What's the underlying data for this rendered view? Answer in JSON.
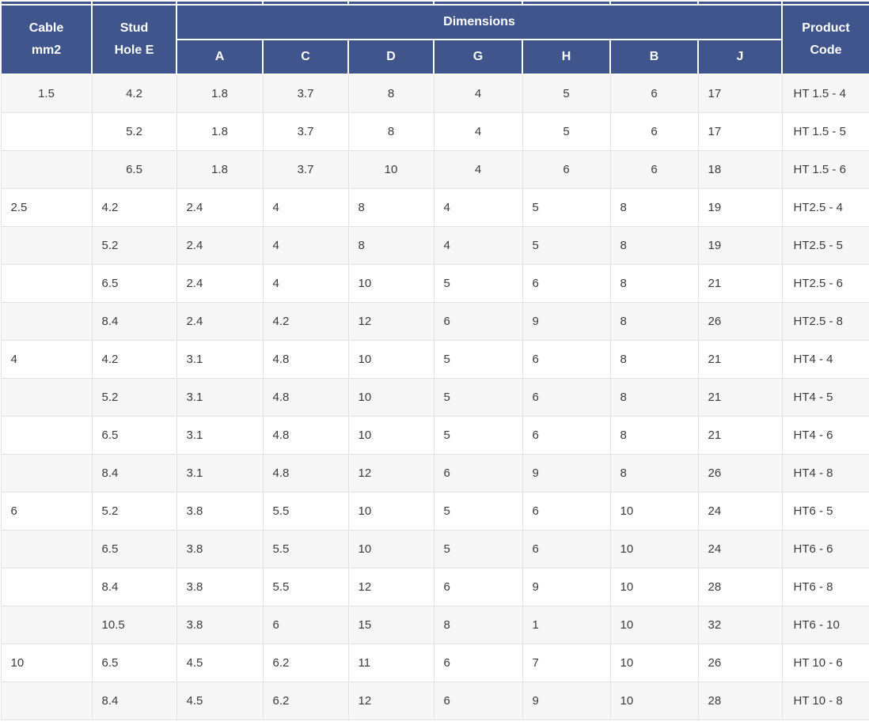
{
  "colors": {
    "header_bg": "#3F558C",
    "header_text": "#FFFFFF",
    "stripe_row": "#F7F7F7",
    "plain_row": "#FFFFFF",
    "cell_border": "#E2E2E2",
    "body_text": "#3B3B3B"
  },
  "header": {
    "cable": "Cable\nmm2",
    "stud_hole": "Stud\nHole E",
    "dimensions": "Dimensions",
    "product_code": "Product\nCode",
    "dimension_columns": [
      "A",
      "C",
      "D",
      "G",
      "H",
      "B",
      "J"
    ]
  },
  "rows": [
    {
      "cable": "1.5",
      "stud": "4.2",
      "dims": [
        "1.8",
        "3.7",
        "8",
        "4",
        "5",
        "6",
        "17"
      ],
      "code": "HT 1.5 - 4",
      "centered": true
    },
    {
      "cable": "",
      "stud": "5.2",
      "dims": [
        "1.8",
        "3.7",
        "8",
        "4",
        "5",
        "6",
        "17"
      ],
      "code": "HT 1.5 - 5",
      "centered": true
    },
    {
      "cable": "",
      "stud": "6.5",
      "dims": [
        "1.8",
        "3.7",
        "10",
        "4",
        "6",
        "6",
        "18"
      ],
      "code": "HT 1.5 - 6",
      "centered": true
    },
    {
      "cable": "2.5",
      "stud": "4.2",
      "dims": [
        "2.4",
        "4",
        "8",
        "4",
        "5",
        "8",
        "19"
      ],
      "code": "HT2.5 - 4",
      "centered": false
    },
    {
      "cable": "",
      "stud": "5.2",
      "dims": [
        "2.4",
        "4",
        "8",
        "4",
        "5",
        "8",
        "19"
      ],
      "code": "HT2.5 - 5",
      "centered": false
    },
    {
      "cable": "",
      "stud": "6.5",
      "dims": [
        "2.4",
        "4",
        "10",
        "5",
        "6",
        "8",
        "21"
      ],
      "code": "HT2.5 - 6",
      "centered": false
    },
    {
      "cable": "",
      "stud": "8.4",
      "dims": [
        "2.4",
        "4.2",
        "12",
        "6",
        "9",
        "8",
        "26"
      ],
      "code": "HT2.5 - 8",
      "centered": false
    },
    {
      "cable": "4",
      "stud": "4.2",
      "dims": [
        "3.1",
        "4.8",
        "10",
        "5",
        "6",
        "8",
        "21"
      ],
      "code": "HT4 - 4",
      "centered": false
    },
    {
      "cable": "",
      "stud": "5.2",
      "dims": [
        "3.1",
        "4.8",
        "10",
        "5",
        "6",
        "8",
        "21"
      ],
      "code": "HT4 - 5",
      "centered": false
    },
    {
      "cable": "",
      "stud": "6.5",
      "dims": [
        "3.1",
        "4.8",
        "10",
        "5",
        "6",
        "8",
        "21"
      ],
      "code": "HT4 - 6",
      "centered": false
    },
    {
      "cable": "",
      "stud": "8.4",
      "dims": [
        "3.1",
        "4.8",
        "12",
        "6",
        "9",
        "8",
        "26"
      ],
      "code": "HT4 - 8",
      "centered": false
    },
    {
      "cable": "6",
      "stud": "5.2",
      "dims": [
        "3.8",
        "5.5",
        "10",
        "5",
        "6",
        "10",
        "24"
      ],
      "code": "HT6 - 5",
      "centered": false
    },
    {
      "cable": "",
      "stud": "6.5",
      "dims": [
        "3.8",
        "5.5",
        "10",
        "5",
        "6",
        "10",
        "24"
      ],
      "code": "HT6 - 6",
      "centered": false
    },
    {
      "cable": "",
      "stud": "8.4",
      "dims": [
        "3.8",
        "5.5",
        "12",
        "6",
        "9",
        "10",
        "28"
      ],
      "code": "HT6 - 8",
      "centered": false
    },
    {
      "cable": "",
      "stud": "10.5",
      "dims": [
        "3.8",
        "6",
        "15",
        "8",
        "1",
        "10",
        "32"
      ],
      "code": "HT6 - 10",
      "centered": false
    },
    {
      "cable": "10",
      "stud": "6.5",
      "dims": [
        "4.5",
        "6.2",
        "11",
        "6",
        "7",
        "10",
        "26"
      ],
      "code": "HT 10 - 6",
      "centered": false
    },
    {
      "cable": "",
      "stud": "8.4",
      "dims": [
        "4.5",
        "6.2",
        "12",
        "6",
        "9",
        "10",
        "28"
      ],
      "code": "HT 10 - 8",
      "centered": false
    }
  ]
}
